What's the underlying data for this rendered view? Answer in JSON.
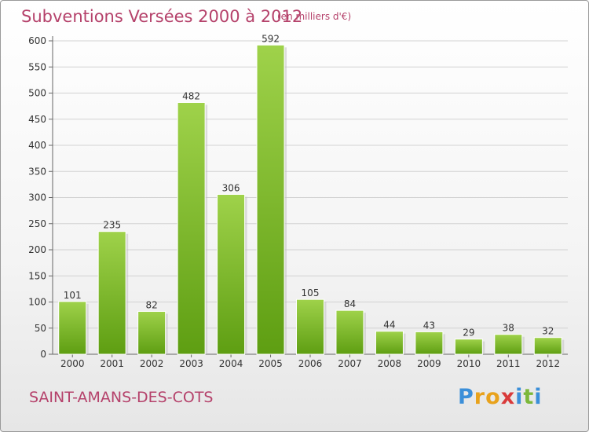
{
  "header": {
    "title": "Subventions Versées 2000 à 2012",
    "unit_note": "(en milliers d'€)"
  },
  "footer": {
    "commune": "SAINT-AMANS-DES-COTS",
    "brand_letters": [
      "P",
      "r",
      "o",
      "x",
      "i",
      "t",
      "i"
    ],
    "brand_colors": [
      "#3b8fd9",
      "#e8a21c",
      "#e8a21c",
      "#d93b3b",
      "#3b8fd9",
      "#7cb83a",
      "#3b8fd9"
    ]
  },
  "colors": {
    "bar_light": "#9fd24a",
    "bar_dark": "#5e9e12",
    "title": "#b5426b",
    "grid": "#d2d2d2"
  },
  "chart_data": {
    "type": "bar",
    "categories": [
      "2000",
      "2001",
      "2002",
      "2003",
      "2004",
      "2005",
      "2006",
      "2007",
      "2008",
      "2009",
      "2010",
      "2011",
      "2012"
    ],
    "values": [
      101,
      235,
      82,
      482,
      306,
      592,
      105,
      84,
      44,
      43,
      29,
      38,
      32
    ],
    "data_labels": [
      "101",
      "235",
      "82",
      "482",
      "306",
      "592",
      "105",
      "84",
      "44",
      "43",
      "29",
      "38",
      "32"
    ],
    "yticks": [
      0,
      50,
      100,
      150,
      200,
      250,
      300,
      350,
      400,
      450,
      500,
      550,
      600
    ],
    "ylim": [
      0,
      600
    ],
    "grid": true
  }
}
